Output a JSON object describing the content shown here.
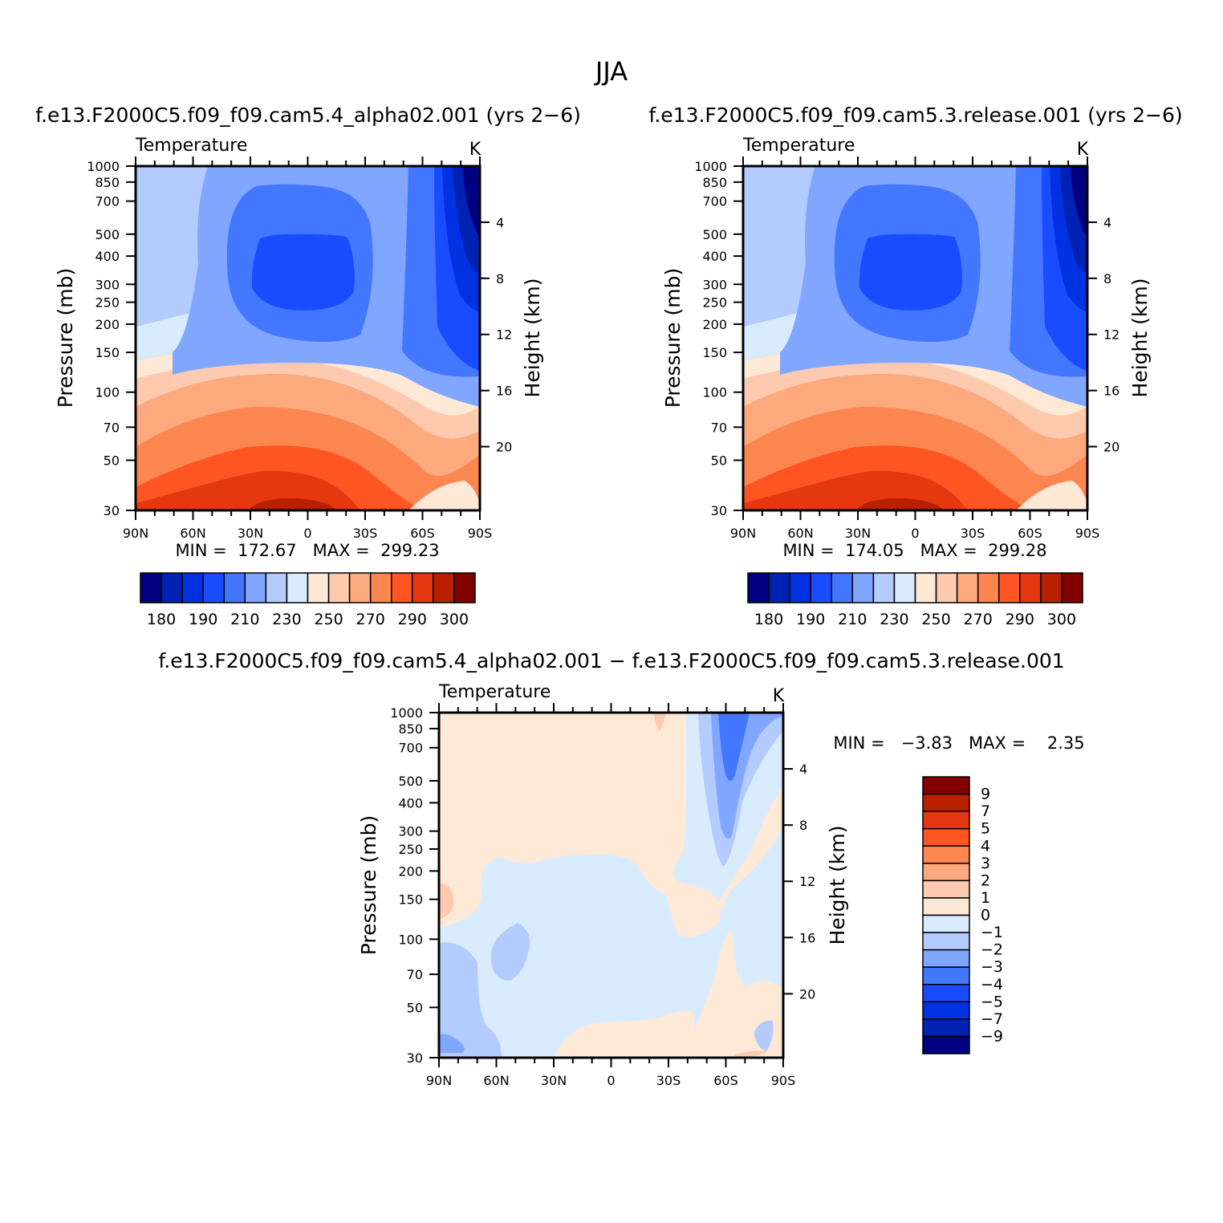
{
  "figure": {
    "title": "JJA"
  },
  "panels": [
    {
      "id": "left",
      "case_title": "f.e13.F2000C5.f09_f09.cam5.4_alpha02.001 (yrs 2−6)",
      "variable_label": "Temperature",
      "units": "K",
      "y_label": "Pressure (mb)",
      "y2_label": "Height (km)",
      "min_max": "MIN =  172.67   MAX =  299.23"
    },
    {
      "id": "right",
      "case_title": "f.e13.F2000C5.f09_f09.cam5.3.release.001 (yrs 2−6)",
      "variable_label": "Temperature",
      "units": "K",
      "y_label": "Pressure (mb)",
      "y2_label": "Height (km)",
      "min_max": "MIN =  174.05   MAX =  299.28"
    },
    {
      "id": "diff",
      "case_title": "f.e13.F2000C5.f09_f09.cam5.4_alpha02.001 − f.e13.F2000C5.f09_f09.cam5.3.release.001",
      "variable_label": "Temperature",
      "units": "K",
      "y_label": "Pressure (mb)",
      "y2_label": "Height (km)",
      "min_max": "MIN =   −3.83   MAX =    2.35"
    }
  ],
  "chart_data": [
    {
      "type": "heatmap",
      "panel": "left",
      "x_ticks": [
        "90N",
        "60N",
        "30N",
        "0",
        "30S",
        "60S",
        "90S"
      ],
      "x_tick_values": [
        90,
        60,
        30,
        0,
        -30,
        -60,
        -90
      ],
      "y_scale": "log",
      "y_reversed": true,
      "y_ticks": [
        30,
        50,
        70,
        100,
        150,
        200,
        250,
        300,
        400,
        500,
        700,
        850,
        1000
      ],
      "y2_ticks": [
        20,
        16,
        12,
        8,
        4
      ],
      "xlim": [
        90,
        -90
      ],
      "ylim": [
        1000,
        30
      ],
      "min": 172.67,
      "max": 299.23,
      "colorbar_labels": [
        "180",
        "190",
        "210",
        "230",
        "250",
        "270",
        "290",
        "300"
      ],
      "colorbar_colors": [
        "#000080",
        "#0022b4",
        "#0032e1",
        "#1a4cff",
        "#4477ff",
        "#80a6ff",
        "#b3cbff",
        "#d9ebff",
        "#fee9d7",
        "#fdcab0",
        "#fca97e",
        "#fc8650",
        "#fe5522",
        "#e53811",
        "#b92000",
        "#820000"
      ]
    },
    {
      "type": "heatmap",
      "panel": "right",
      "x_ticks": [
        "90N",
        "60N",
        "30N",
        "0",
        "30S",
        "60S",
        "90S"
      ],
      "x_tick_values": [
        90,
        60,
        30,
        0,
        -30,
        -60,
        -90
      ],
      "y_scale": "log",
      "y_reversed": true,
      "y_ticks": [
        30,
        50,
        70,
        100,
        150,
        200,
        250,
        300,
        400,
        500,
        700,
        850,
        1000
      ],
      "y2_ticks": [
        20,
        16,
        12,
        8,
        4
      ],
      "xlim": [
        90,
        -90
      ],
      "ylim": [
        1000,
        30
      ],
      "min": 174.05,
      "max": 299.28,
      "colorbar_labels": [
        "180",
        "190",
        "210",
        "230",
        "250",
        "270",
        "290",
        "300"
      ],
      "colorbar_colors": [
        "#000080",
        "#0022b4",
        "#0032e1",
        "#1a4cff",
        "#4477ff",
        "#80a6ff",
        "#b3cbff",
        "#d9ebff",
        "#fee9d7",
        "#fdcab0",
        "#fca97e",
        "#fc8650",
        "#fe5522",
        "#e53811",
        "#b92000",
        "#820000"
      ]
    },
    {
      "type": "heatmap",
      "panel": "diff",
      "x_ticks": [
        "90N",
        "60N",
        "30N",
        "0",
        "30S",
        "60S",
        "90S"
      ],
      "x_tick_values": [
        90,
        60,
        30,
        0,
        -30,
        -60,
        -90
      ],
      "y_scale": "log",
      "y_reversed": true,
      "y_ticks": [
        30,
        50,
        70,
        100,
        150,
        200,
        250,
        300,
        400,
        500,
        700,
        850,
        1000
      ],
      "y2_ticks": [
        20,
        16,
        12,
        8,
        4
      ],
      "xlim": [
        90,
        -90
      ],
      "ylim": [
        1000,
        30
      ],
      "min": -3.83,
      "max": 2.35,
      "colorbar_labels": [
        "9",
        "7",
        "5",
        "4",
        "3",
        "2",
        "1",
        "0",
        "−1",
        "−2",
        "−3",
        "−4",
        "−5",
        "−7",
        "−9"
      ],
      "colorbar_colors": [
        "#820000",
        "#b92000",
        "#e53811",
        "#fe5522",
        "#fc8650",
        "#fca97e",
        "#fdcab0",
        "#fee9d7",
        "#d9ebff",
        "#b3cbff",
        "#80a6ff",
        "#4477ff",
        "#1a4cff",
        "#0032e1",
        "#0022b4",
        "#000080"
      ]
    }
  ]
}
